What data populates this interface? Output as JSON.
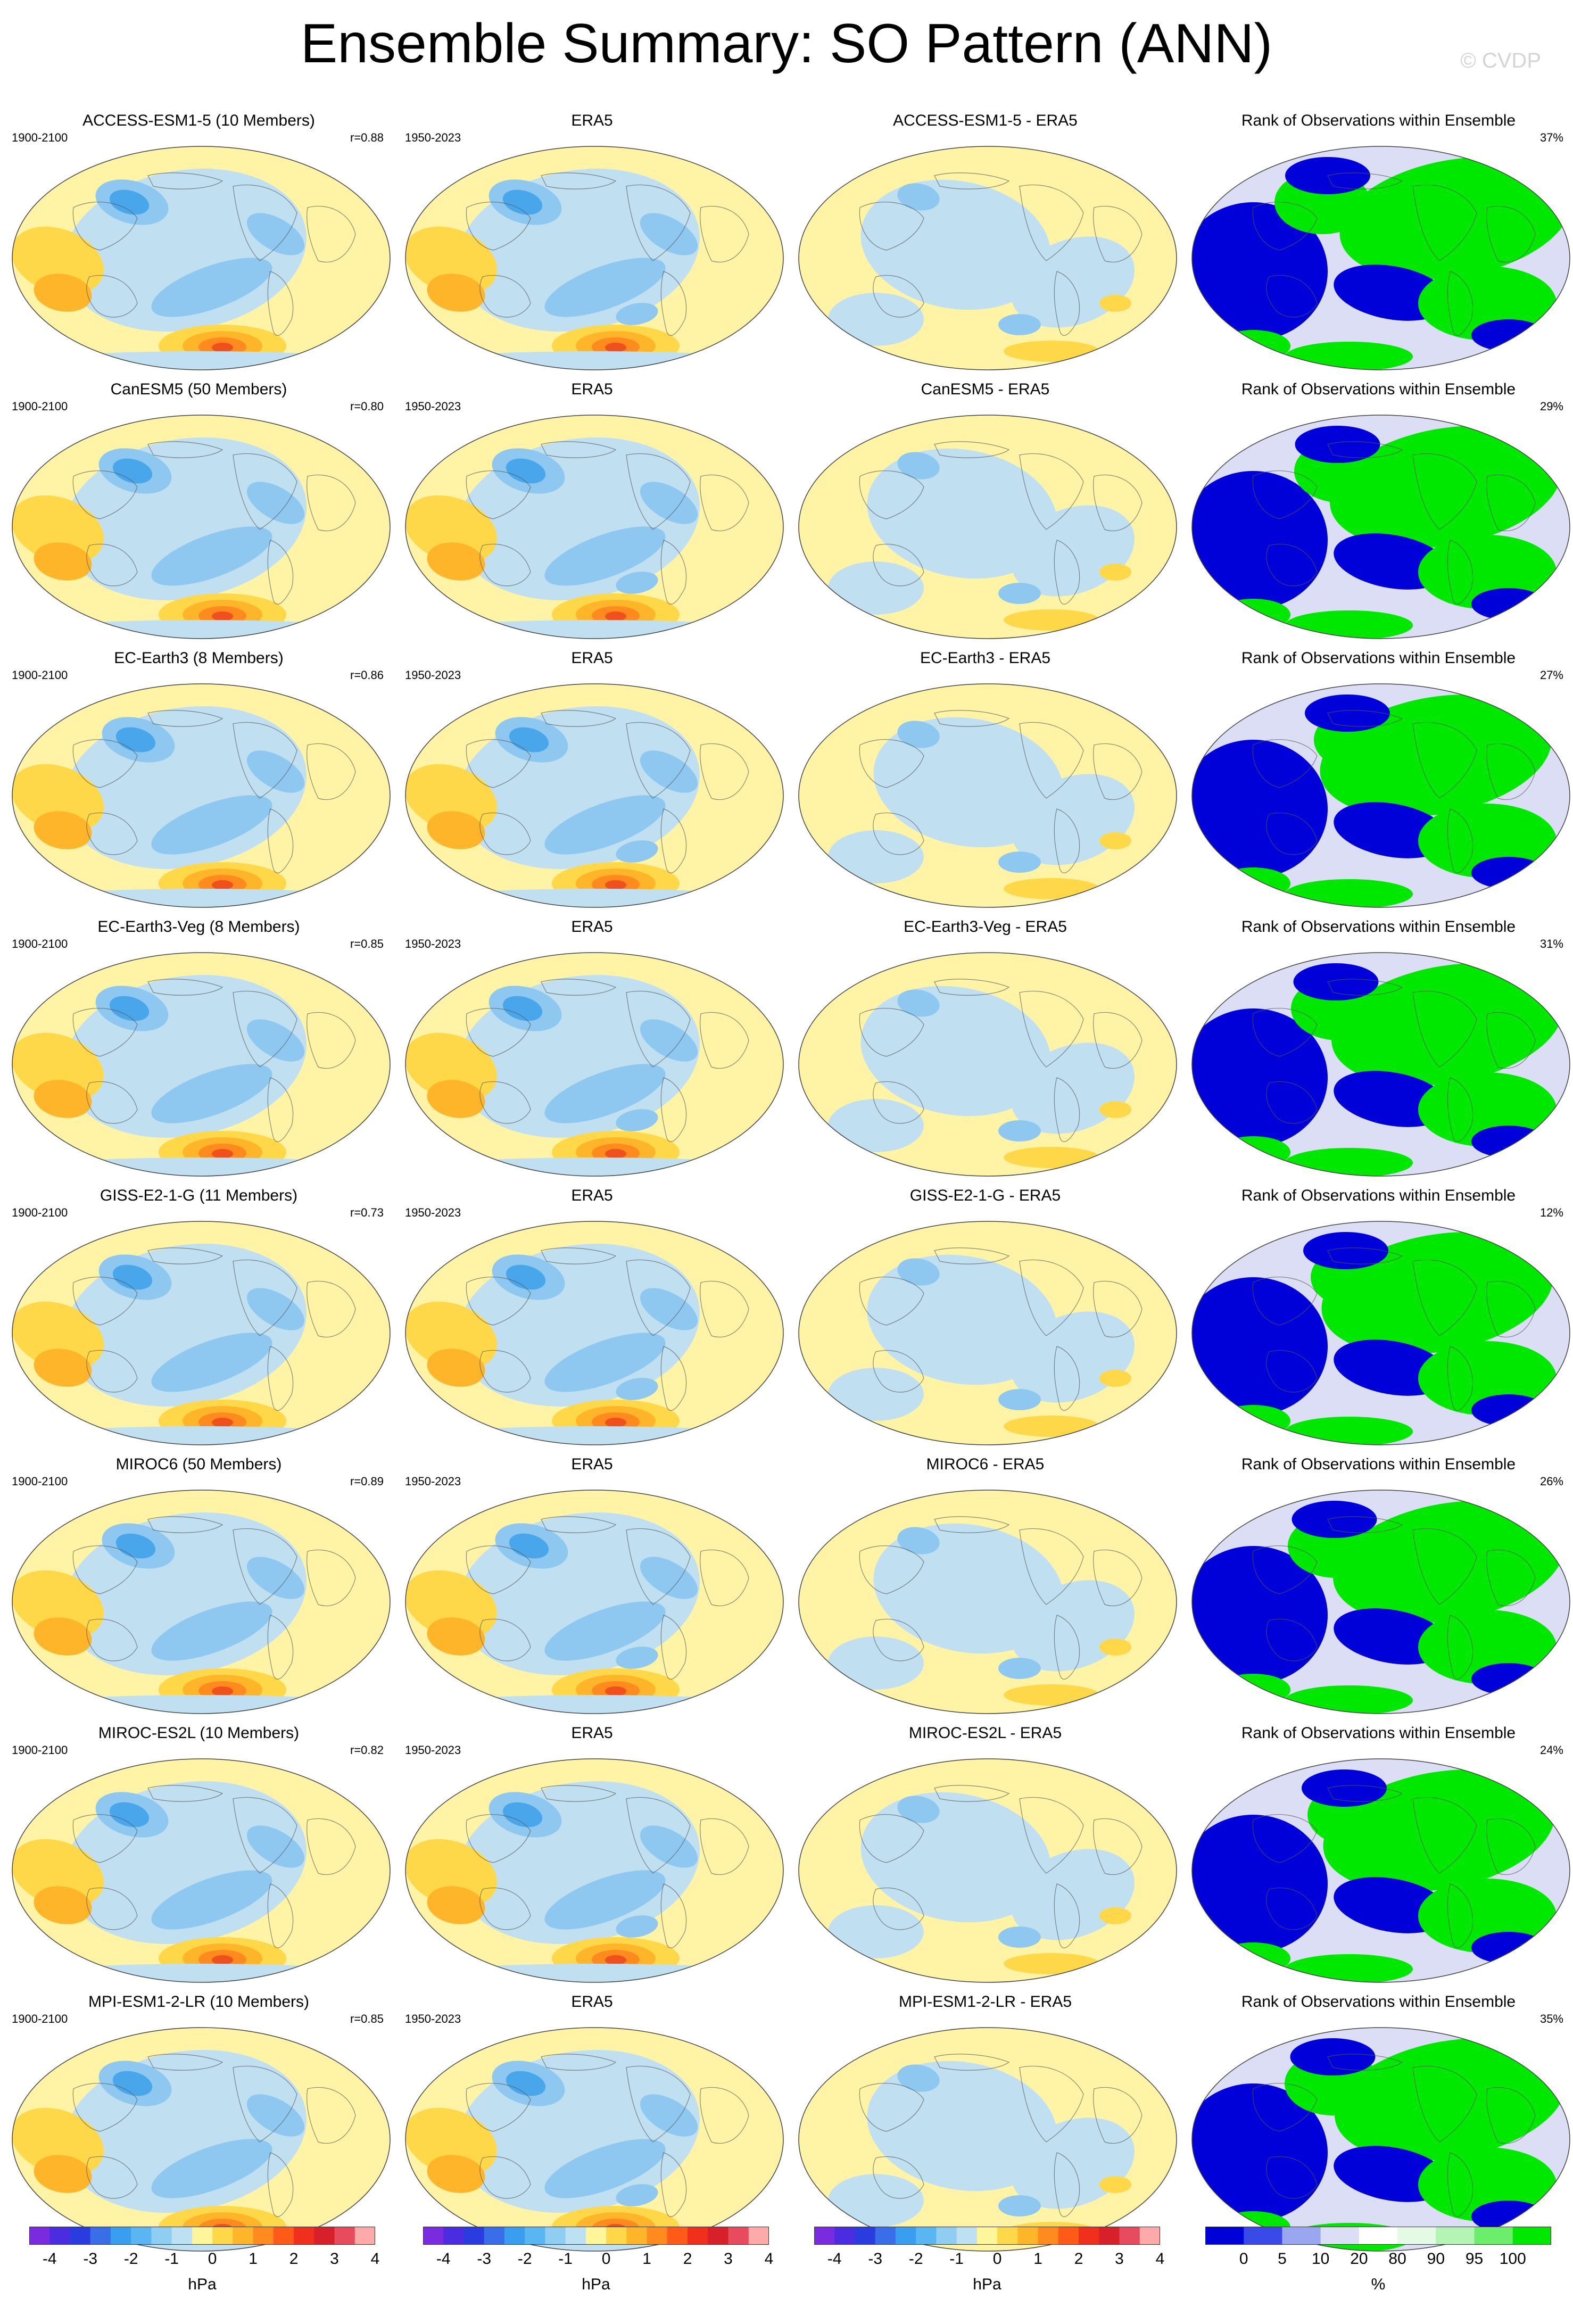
{
  "title": "Ensemble Summary: SO Pattern (ANN)",
  "watermark": "© CVDP",
  "obs_period": "1950-2023",
  "obs_name": "ERA5",
  "rank_title": "Rank of Observations within Ensemble",
  "rows": [
    {
      "model": "ACCESS-ESM1-5 (10 Members)",
      "diff": "ACCESS-ESM1-5 - ERA5",
      "period": "1900-2100",
      "r": "r=0.88",
      "rank": "37%"
    },
    {
      "model": "CanESM5 (50 Members)",
      "diff": "CanESM5 - ERA5",
      "period": "1900-2100",
      "r": "r=0.80",
      "rank": "29%"
    },
    {
      "model": "EC-Earth3 (8 Members)",
      "diff": "EC-Earth3 - ERA5",
      "period": "1900-2100",
      "r": "r=0.86",
      "rank": "27%"
    },
    {
      "model": "EC-Earth3-Veg (8 Members)",
      "diff": "EC-Earth3-Veg - ERA5",
      "period": "1900-2100",
      "r": "r=0.85",
      "rank": "31%"
    },
    {
      "model": "GISS-E2-1-G (11 Members)",
      "diff": "GISS-E2-1-G - ERA5",
      "period": "1900-2100",
      "r": "r=0.73",
      "rank": "12%"
    },
    {
      "model": "MIROC6 (50 Members)",
      "diff": "MIROC6 - ERA5",
      "period": "1900-2100",
      "r": "r=0.89",
      "rank": "26%"
    },
    {
      "model": "MIROC-ES2L (10 Members)",
      "diff": "MIROC-ES2L - ERA5",
      "period": "1900-2100",
      "r": "r=0.82",
      "rank": "24%"
    },
    {
      "model": "MPI-ESM1-2-LR (10 Members)",
      "diff": "MPI-ESM1-2-LR - ERA5",
      "period": "1900-2100",
      "r": "r=0.85",
      "rank": "35%"
    }
  ],
  "colorbars": {
    "hpa": {
      "unit": "hPa",
      "ticks": [
        "-4",
        "-3",
        "-2",
        "-1",
        "0",
        "1",
        "2",
        "3",
        "4"
      ],
      "colors": [
        "#7a2be0",
        "#4b2ce0",
        "#2a3ce0",
        "#3a6ee8",
        "#3a9ef0",
        "#5ab6f2",
        "#8fcdf2",
        "#bde0f2",
        "#fff59a",
        "#ffd84a",
        "#ffb52a",
        "#ff8a1e",
        "#ff5a18",
        "#f0301c",
        "#d8202a",
        "#e84a5e",
        "#ffaaaa"
      ]
    },
    "rank": {
      "unit": "%",
      "ticks": [
        "0",
        "5",
        "10",
        "20",
        "80",
        "90",
        "95",
        "100"
      ],
      "colors": [
        "#0000d8",
        "#3a4ae8",
        "#9aa6f0",
        "#dcdef6",
        "#ffffff",
        "#e4fae4",
        "#b4f4b4",
        "#6cee6c",
        "#00e800"
      ]
    }
  },
  "map_colors": {
    "ocean_neutral": "#fff4a6",
    "neg1": "#c0e0f2",
    "neg2": "#8ec8f0",
    "neg3": "#4aa6ea",
    "neg4": "#2a72e0",
    "pos1": "#ffd84a",
    "pos2": "#ffb52a",
    "pos3": "#ff8a1e",
    "pos4": "#f0501c",
    "rank_blue": "#0000d8",
    "rank_green": "#00e800",
    "rank_light": "#dcdef6"
  }
}
